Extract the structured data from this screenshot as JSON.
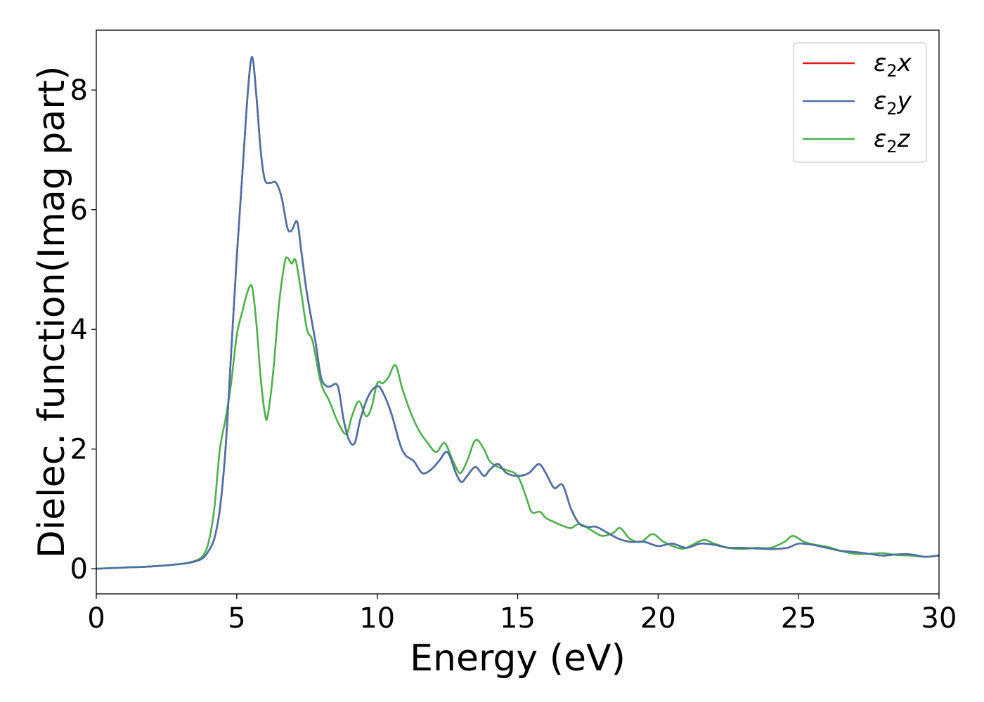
{
  "chart_data": {
    "type": "line",
    "xlabel": "Energy (eV)",
    "ylabel": "Dielec. function(Imag part)",
    "xlim": [
      0,
      30
    ],
    "ylim": [
      -0.42,
      9.0
    ],
    "xticks": [
      0,
      5,
      10,
      15,
      20,
      25,
      30
    ],
    "yticks": [
      0,
      2,
      4,
      6,
      8
    ],
    "grid": false,
    "legend_position": "top-right",
    "series": [
      {
        "name": "ε₂x",
        "legend_base": "ε",
        "legend_sub": "2",
        "legend_suffix": "x",
        "color": "#e41a1c",
        "x": [
          0,
          1,
          2,
          3,
          3.5,
          3.8,
          4.0,
          4.2,
          4.4,
          4.6,
          4.8,
          5.0,
          5.2,
          5.4,
          5.55,
          5.7,
          5.85,
          6.0,
          6.2,
          6.4,
          6.6,
          6.8,
          6.95,
          7.15,
          7.3,
          7.5,
          7.8,
          8.0,
          8.2,
          8.35,
          8.6,
          8.8,
          9.0,
          9.2,
          9.4,
          9.7,
          10.0,
          10.2,
          10.5,
          10.8,
          11.0,
          11.3,
          11.6,
          11.9,
          12.2,
          12.5,
          12.8,
          13.0,
          13.2,
          13.5,
          13.8,
          14.0,
          14.3,
          14.6,
          15.0,
          15.4,
          15.75,
          16.0,
          16.3,
          16.6,
          16.9,
          17.2,
          17.5,
          17.8,
          18.2,
          18.6,
          19.0,
          19.5,
          20.0,
          20.5,
          21.0,
          21.5,
          22.0,
          22.5,
          23.0,
          24.0,
          24.6,
          25.0,
          25.5,
          26.0,
          26.5,
          27.0,
          27.5,
          28.0,
          28.5,
          29.0,
          29.5,
          30.0
        ],
        "y": [
          0.0,
          0.02,
          0.04,
          0.08,
          0.12,
          0.18,
          0.3,
          0.5,
          1.0,
          2.0,
          3.6,
          5.2,
          6.6,
          8.0,
          8.55,
          7.9,
          7.0,
          6.5,
          6.45,
          6.45,
          6.2,
          5.7,
          5.65,
          5.8,
          5.3,
          4.6,
          3.8,
          3.2,
          3.05,
          3.05,
          3.05,
          2.5,
          2.15,
          2.1,
          2.5,
          2.9,
          3.05,
          2.95,
          2.6,
          2.1,
          1.9,
          1.8,
          1.6,
          1.65,
          1.8,
          1.95,
          1.6,
          1.45,
          1.55,
          1.7,
          1.55,
          1.65,
          1.75,
          1.6,
          1.55,
          1.6,
          1.75,
          1.6,
          1.35,
          1.4,
          1.0,
          0.75,
          0.7,
          0.7,
          0.6,
          0.5,
          0.45,
          0.45,
          0.38,
          0.42,
          0.35,
          0.42,
          0.4,
          0.35,
          0.35,
          0.33,
          0.35,
          0.42,
          0.4,
          0.35,
          0.3,
          0.28,
          0.25,
          0.22,
          0.24,
          0.24,
          0.2,
          0.22
        ]
      },
      {
        "name": "ε₂y",
        "legend_base": "ε",
        "legend_sub": "2",
        "legend_suffix": "y",
        "color": "#4a72a8",
        "x": [
          0,
          1,
          2,
          3,
          3.5,
          3.8,
          4.0,
          4.2,
          4.4,
          4.6,
          4.8,
          5.0,
          5.2,
          5.4,
          5.55,
          5.7,
          5.85,
          6.0,
          6.2,
          6.4,
          6.6,
          6.8,
          6.95,
          7.15,
          7.3,
          7.5,
          7.8,
          8.0,
          8.2,
          8.35,
          8.6,
          8.8,
          9.0,
          9.2,
          9.4,
          9.7,
          10.0,
          10.2,
          10.5,
          10.8,
          11.0,
          11.3,
          11.6,
          11.9,
          12.2,
          12.5,
          12.8,
          13.0,
          13.2,
          13.5,
          13.8,
          14.0,
          14.3,
          14.6,
          15.0,
          15.4,
          15.75,
          16.0,
          16.3,
          16.6,
          16.9,
          17.2,
          17.5,
          17.8,
          18.2,
          18.6,
          19.0,
          19.5,
          20.0,
          20.5,
          21.0,
          21.5,
          22.0,
          22.5,
          23.0,
          24.0,
          24.6,
          25.0,
          25.5,
          26.0,
          26.5,
          27.0,
          27.5,
          28.0,
          28.5,
          29.0,
          29.5,
          30.0
        ],
        "y": [
          0.0,
          0.02,
          0.04,
          0.08,
          0.12,
          0.18,
          0.3,
          0.5,
          1.0,
          2.0,
          3.6,
          5.2,
          6.6,
          8.0,
          8.55,
          7.9,
          7.0,
          6.5,
          6.45,
          6.45,
          6.2,
          5.7,
          5.65,
          5.8,
          5.3,
          4.6,
          3.8,
          3.2,
          3.05,
          3.05,
          3.05,
          2.5,
          2.15,
          2.1,
          2.5,
          2.9,
          3.05,
          2.95,
          2.6,
          2.1,
          1.9,
          1.8,
          1.6,
          1.65,
          1.8,
          1.95,
          1.6,
          1.45,
          1.55,
          1.7,
          1.55,
          1.65,
          1.75,
          1.6,
          1.55,
          1.6,
          1.75,
          1.6,
          1.35,
          1.4,
          1.0,
          0.75,
          0.7,
          0.7,
          0.6,
          0.5,
          0.45,
          0.45,
          0.38,
          0.42,
          0.35,
          0.42,
          0.4,
          0.35,
          0.35,
          0.33,
          0.35,
          0.42,
          0.4,
          0.35,
          0.3,
          0.28,
          0.25,
          0.22,
          0.24,
          0.24,
          0.2,
          0.22
        ]
      },
      {
        "name": "ε₂z",
        "legend_base": "ε",
        "legend_sub": "2",
        "legend_suffix": "z",
        "color": "#4daf4a",
        "x": [
          0,
          1,
          2,
          3,
          3.5,
          3.8,
          4.0,
          4.2,
          4.4,
          4.6,
          4.8,
          5.0,
          5.2,
          5.4,
          5.55,
          5.7,
          5.85,
          6.0,
          6.1,
          6.3,
          6.5,
          6.7,
          6.8,
          6.95,
          7.1,
          7.3,
          7.5,
          7.7,
          8.0,
          8.3,
          8.6,
          8.9,
          9.1,
          9.35,
          9.6,
          9.8,
          10.0,
          10.2,
          10.4,
          10.65,
          10.9,
          11.2,
          11.5,
          11.8,
          12.1,
          12.4,
          12.7,
          12.95,
          13.2,
          13.5,
          13.8,
          14.0,
          14.3,
          14.6,
          15.0,
          15.3,
          15.5,
          15.8,
          16.0,
          16.3,
          16.6,
          16.9,
          17.2,
          17.6,
          18.0,
          18.4,
          18.65,
          19.0,
          19.4,
          19.8,
          20.2,
          20.7,
          21.0,
          21.6,
          22.0,
          22.5,
          23.0,
          23.5,
          24.0,
          24.5,
          24.8,
          25.2,
          25.6,
          26.0,
          26.5,
          27.0,
          27.5,
          28.0,
          28.5,
          29.0,
          29.5,
          30.0
        ],
        "y": [
          0.0,
          0.02,
          0.04,
          0.08,
          0.13,
          0.22,
          0.45,
          1.0,
          2.0,
          2.5,
          3.1,
          3.9,
          4.3,
          4.65,
          4.7,
          4.1,
          3.2,
          2.6,
          2.55,
          3.3,
          4.4,
          5.1,
          5.2,
          5.1,
          5.15,
          4.6,
          4.0,
          3.8,
          3.1,
          2.8,
          2.45,
          2.25,
          2.55,
          2.8,
          2.55,
          2.7,
          3.1,
          3.1,
          3.2,
          3.4,
          3.0,
          2.6,
          2.3,
          2.1,
          1.95,
          2.1,
          1.8,
          1.6,
          1.8,
          2.15,
          2.0,
          1.8,
          1.7,
          1.65,
          1.55,
          1.2,
          0.95,
          0.95,
          0.85,
          0.78,
          0.72,
          0.68,
          0.75,
          0.65,
          0.55,
          0.6,
          0.68,
          0.5,
          0.45,
          0.58,
          0.45,
          0.35,
          0.35,
          0.48,
          0.42,
          0.35,
          0.33,
          0.35,
          0.35,
          0.45,
          0.55,
          0.45,
          0.4,
          0.37,
          0.3,
          0.25,
          0.25,
          0.26,
          0.23,
          0.22,
          0.2,
          0.22
        ]
      }
    ]
  }
}
